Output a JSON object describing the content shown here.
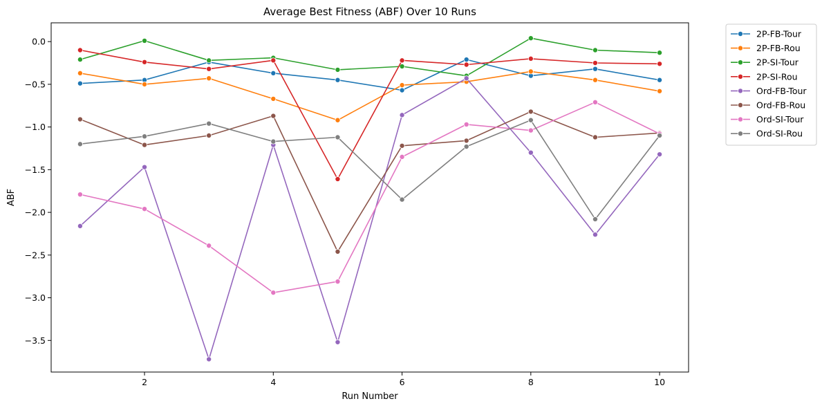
{
  "chart_data": {
    "type": "line",
    "title": "Average Best Fitness (ABF) Over 10 Runs",
    "xlabel": "Run Number",
    "ylabel": "ABF",
    "x": [
      1,
      2,
      3,
      4,
      5,
      6,
      7,
      8,
      9,
      10
    ],
    "xlim": [
      0.55,
      10.45
    ],
    "ylim": [
      -3.87,
      0.22
    ],
    "xticks": [
      2,
      4,
      6,
      8,
      10
    ],
    "yticks": [
      0.0,
      -0.5,
      -1.0,
      -1.5,
      -2.0,
      -2.5,
      -3.0,
      -3.5
    ],
    "ytick_labels": [
      "0.0",
      "−0.5",
      "−1.0",
      "−1.5",
      "−2.0",
      "−2.5",
      "−3.0",
      "−3.5"
    ],
    "grid": false,
    "legend_position": "outside top-right",
    "marker": "circle",
    "series": [
      {
        "name": "2P-FB-Tour",
        "color": "#1f77b4",
        "values": [
          -0.49,
          -0.45,
          -0.24,
          -0.37,
          -0.45,
          -0.57,
          -0.21,
          -0.4,
          -0.32,
          -0.45
        ]
      },
      {
        "name": "2P-FB-Rou",
        "color": "#ff7f0e",
        "values": [
          -0.37,
          -0.5,
          -0.43,
          -0.67,
          -0.92,
          -0.51,
          -0.47,
          -0.35,
          -0.45,
          -0.58
        ]
      },
      {
        "name": "2P-SI-Tour",
        "color": "#2ca02c",
        "values": [
          -0.21,
          0.01,
          -0.22,
          -0.19,
          -0.33,
          -0.29,
          -0.4,
          0.04,
          -0.1,
          -0.13
        ]
      },
      {
        "name": "2P-SI-Rou",
        "color": "#d62728",
        "values": [
          -0.1,
          -0.24,
          -0.32,
          -0.22,
          -1.61,
          -0.22,
          -0.27,
          -0.2,
          -0.25,
          -0.26
        ]
      },
      {
        "name": "Ord-FB-Tour",
        "color": "#9467bd",
        "values": [
          -2.16,
          -1.47,
          -3.72,
          -1.21,
          -3.52,
          -0.86,
          -0.43,
          -1.3,
          -2.26,
          -1.32
        ]
      },
      {
        "name": "Ord-FB-Rou",
        "color": "#8c564b",
        "values": [
          -0.91,
          -1.21,
          -1.1,
          -0.87,
          -2.46,
          -1.22,
          -1.16,
          -0.82,
          -1.12,
          -1.07
        ]
      },
      {
        "name": "Ord-SI-Tour",
        "color": "#e377c2",
        "values": [
          -1.79,
          -1.96,
          -2.39,
          -2.94,
          -2.81,
          -1.35,
          -0.97,
          -1.04,
          -0.71,
          -1.08
        ]
      },
      {
        "name": "Ord-SI-Rou",
        "color": "#7f7f7f",
        "values": [
          -1.2,
          -1.11,
          -0.96,
          -1.17,
          -1.12,
          -1.85,
          -1.23,
          -0.92,
          -2.08,
          -1.1
        ]
      }
    ]
  }
}
